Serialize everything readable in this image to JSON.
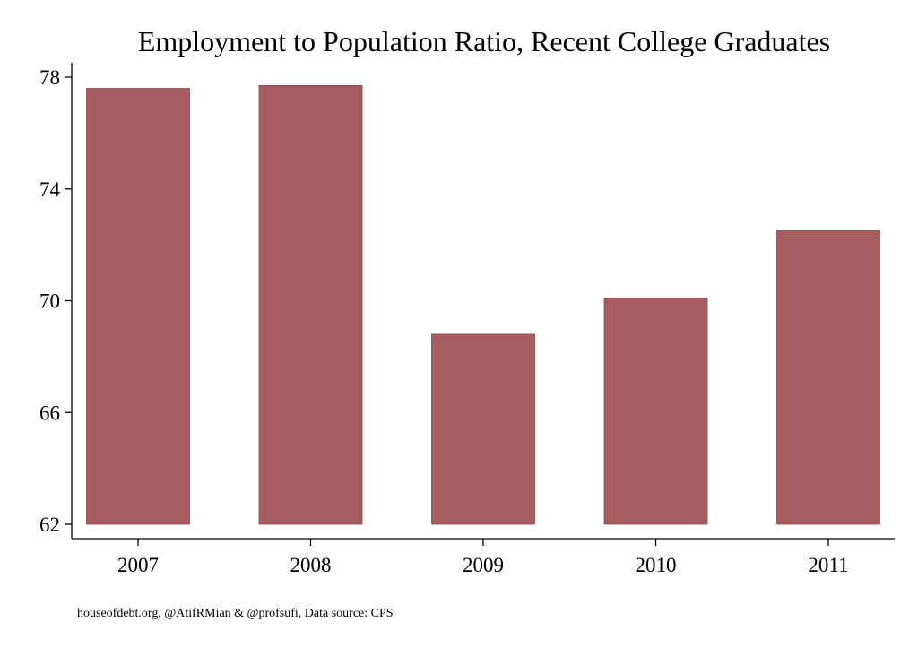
{
  "chart_data": {
    "type": "bar",
    "title": "Employment to Population Ratio, Recent College Graduates",
    "categories": [
      "2007",
      "2008",
      "2009",
      "2010",
      "2011"
    ],
    "values": [
      77.6,
      77.7,
      68.8,
      70.1,
      72.5
    ],
    "xlabel": "",
    "ylabel": "",
    "ylim": [
      62,
      78
    ],
    "yticks": [
      62,
      66,
      70,
      74,
      78
    ],
    "bar_color": "#a65d62",
    "grid": false,
    "legend": "none"
  },
  "footer": {
    "source": "houseofdebt.org, @AtifRMian & @profsufi, Data source: CPS"
  }
}
